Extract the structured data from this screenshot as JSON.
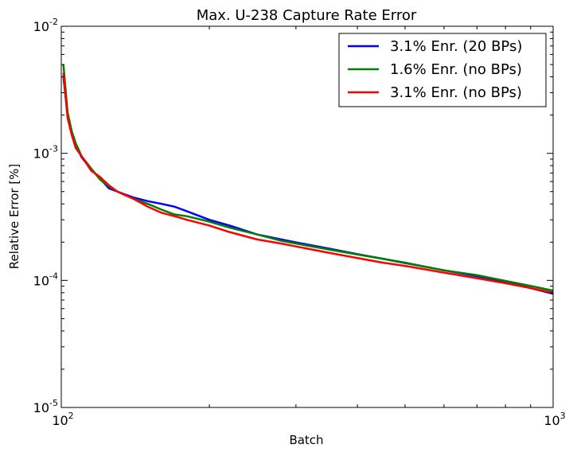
{
  "chart_data": {
    "type": "line",
    "title": "Max. U-238 Capture Rate Error",
    "xlabel": "Batch",
    "ylabel": "Relative Error [%]",
    "xscale": "log",
    "yscale": "log",
    "xlim": [
      100,
      1000
    ],
    "ylim": [
      1e-05,
      0.01
    ],
    "x_ticks": [
      {
        "value": 100,
        "base": "10",
        "exp": "2"
      },
      {
        "value": 1000,
        "base": "10",
        "exp": "3"
      }
    ],
    "y_ticks": [
      {
        "value": 1e-05,
        "base": "10",
        "exp": "-5"
      },
      {
        "value": 0.0001,
        "base": "10",
        "exp": "-4"
      },
      {
        "value": 0.001,
        "base": "10",
        "exp": "-3"
      },
      {
        "value": 0.01,
        "base": "10",
        "exp": "-2"
      }
    ],
    "grid": false,
    "legend_position": "top-right",
    "series": [
      {
        "name": "3.1% Enr. (20 BPs)",
        "color": "#0000ff",
        "points": [
          [
            101,
            0.004
          ],
          [
            103,
            0.002
          ],
          [
            105,
            0.00145
          ],
          [
            107,
            0.00115
          ],
          [
            110,
            0.00093
          ],
          [
            115,
            0.00075
          ],
          [
            120,
            0.00063
          ],
          [
            125,
            0.00053
          ],
          [
            130,
            0.0005
          ],
          [
            140,
            0.00045
          ],
          [
            150,
            0.00042
          ],
          [
            160,
            0.0004
          ],
          [
            170,
            0.00038
          ],
          [
            180,
            0.00035
          ],
          [
            200,
            0.0003
          ],
          [
            220,
            0.00027
          ],
          [
            250,
            0.00023
          ],
          [
            280,
            0.00021
          ],
          [
            300,
            0.000199
          ],
          [
            350,
            0.000178
          ],
          [
            400,
            0.000161
          ],
          [
            450,
            0.000148
          ],
          [
            500,
            0.000137
          ],
          [
            550,
            0.000128
          ],
          [
            600,
            0.00012
          ],
          [
            700,
            0.000108
          ],
          [
            800,
            9.8e-05
          ],
          [
            900,
            8.7e-05
          ],
          [
            1000,
            7.85e-05
          ]
        ]
      },
      {
        "name": "1.6% Enr. (no BPs)",
        "color": "#008000",
        "points": [
          [
            101,
            0.005
          ],
          [
            103,
            0.0021
          ],
          [
            105,
            0.0015
          ],
          [
            107,
            0.0012
          ],
          [
            110,
            0.00095
          ],
          [
            115,
            0.00076
          ],
          [
            120,
            0.00062
          ],
          [
            125,
            0.00055
          ],
          [
            130,
            0.0005
          ],
          [
            140,
            0.00044
          ],
          [
            150,
            0.0004
          ],
          [
            160,
            0.00036
          ],
          [
            170,
            0.00033
          ],
          [
            180,
            0.00032
          ],
          [
            200,
            0.00029
          ],
          [
            220,
            0.00026
          ],
          [
            250,
            0.00023
          ],
          [
            280,
            0.000205
          ],
          [
            300,
            0.000195
          ],
          [
            350,
            0.000175
          ],
          [
            400,
            0.00016
          ],
          [
            450,
            0.000148
          ],
          [
            500,
            0.000138
          ],
          [
            550,
            0.000128
          ],
          [
            600,
            0.00012
          ],
          [
            700,
            0.00011
          ],
          [
            800,
            9.9e-05
          ],
          [
            900,
            9.05e-05
          ],
          [
            1000,
            8.3e-05
          ]
        ]
      },
      {
        "name": "3.1% Enr. (no BPs)",
        "color": "#ff0000",
        "points": [
          [
            101,
            0.0043
          ],
          [
            103,
            0.0019
          ],
          [
            105,
            0.0014
          ],
          [
            107,
            0.0011
          ],
          [
            110,
            0.00095
          ],
          [
            115,
            0.00073
          ],
          [
            120,
            0.00065
          ],
          [
            125,
            0.00056
          ],
          [
            130,
            0.0005
          ],
          [
            140,
            0.00044
          ],
          [
            150,
            0.00038
          ],
          [
            160,
            0.00034
          ],
          [
            170,
            0.00032
          ],
          [
            180,
            0.0003
          ],
          [
            200,
            0.00027
          ],
          [
            220,
            0.00024
          ],
          [
            250,
            0.00021
          ],
          [
            280,
            0.000195
          ],
          [
            300,
            0.000185
          ],
          [
            350,
            0.000165
          ],
          [
            400,
            0.00015
          ],
          [
            450,
            0.000138
          ],
          [
            500,
            0.00013
          ],
          [
            550,
            0.000122
          ],
          [
            600,
            0.000115
          ],
          [
            700,
            0.000104
          ],
          [
            800,
            9.5e-05
          ],
          [
            900,
            8.7e-05
          ],
          [
            1000,
            8e-05
          ]
        ]
      }
    ]
  }
}
